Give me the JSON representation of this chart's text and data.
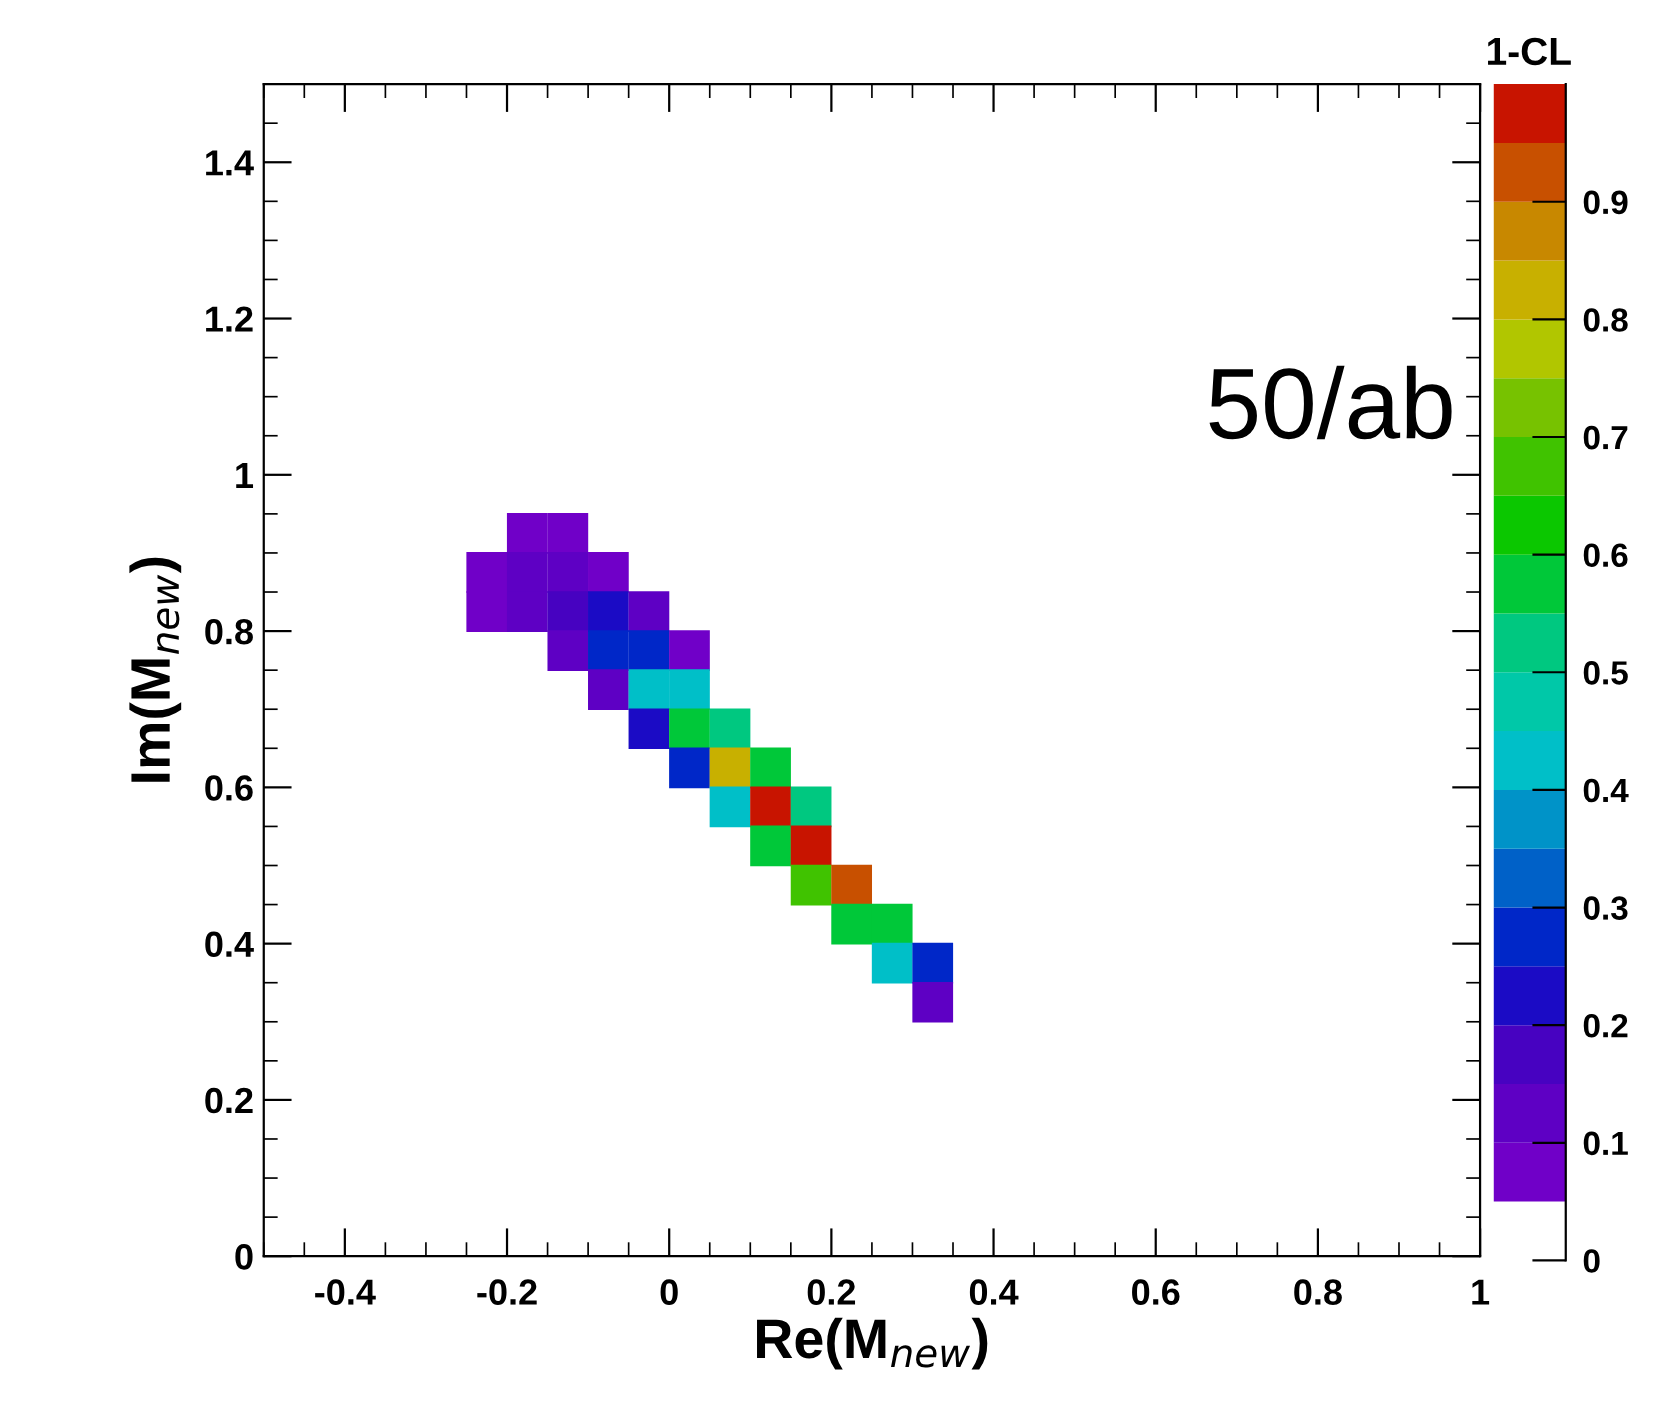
{
  "chart_data": {
    "type": "scatter",
    "marker": "square",
    "xlabel": "Re(M$_{new}$)",
    "ylabel": "Im(M$_{new}$)",
    "clabel": "1-CL",
    "annotations": [
      "50/ab"
    ],
    "x": [
      -0.175,
      -0.125,
      -0.225,
      -0.175,
      -0.125,
      -0.075,
      -0.225,
      -0.175,
      -0.125,
      -0.075,
      -0.025,
      -0.125,
      -0.075,
      -0.025,
      0.025,
      -0.075,
      -0.025,
      0.025,
      -0.025,
      0.025,
      0.075,
      0.025,
      0.075,
      0.125,
      0.075,
      0.125,
      0.175,
      0.125,
      0.175,
      0.175,
      0.225,
      0.225,
      0.275,
      0.275,
      0.325,
      0.325
    ],
    "values": [
      0.925,
      0.925,
      0.875,
      0.875,
      0.875,
      0.875,
      0.825,
      0.825,
      0.825,
      0.825,
      0.825,
      0.775,
      0.775,
      0.775,
      0.775,
      0.725,
      0.725,
      0.725,
      0.675,
      0.675,
      0.675,
      0.625,
      0.625,
      0.625,
      0.575,
      0.575,
      0.575,
      0.525,
      0.525,
      0.475,
      0.475,
      0.425,
      0.425,
      0.375,
      0.375,
      0.325
    ],
    "cvalues": [
      0.06,
      0.07,
      0.06,
      0.1,
      0.15,
      0.08,
      0.06,
      0.1,
      0.18,
      0.22,
      0.1,
      0.1,
      0.25,
      0.3,
      0.06,
      0.12,
      0.4,
      0.4,
      0.2,
      0.6,
      0.5,
      0.3,
      0.8,
      0.6,
      0.4,
      0.97,
      0.5,
      0.6,
      1.0,
      0.7,
      0.95,
      0.6,
      0.6,
      0.4,
      0.3,
      0.15
    ],
    "xlim": [
      -0.5,
      1
    ],
    "xticks": [
      -0.4,
      -0.2,
      0,
      0.2,
      0.4,
      0.6,
      0.8,
      1
    ],
    "ylim": [
      0,
      1.5
    ],
    "yticks": [
      0,
      0.2,
      0.4,
      0.6,
      0.8,
      1,
      1.2,
      1.4
    ],
    "clim": [
      0,
      1
    ],
    "cticks": [
      0,
      0.1,
      0.2,
      0.3,
      0.4,
      0.5,
      0.6,
      0.7,
      0.8,
      0.9
    ]
  }
}
